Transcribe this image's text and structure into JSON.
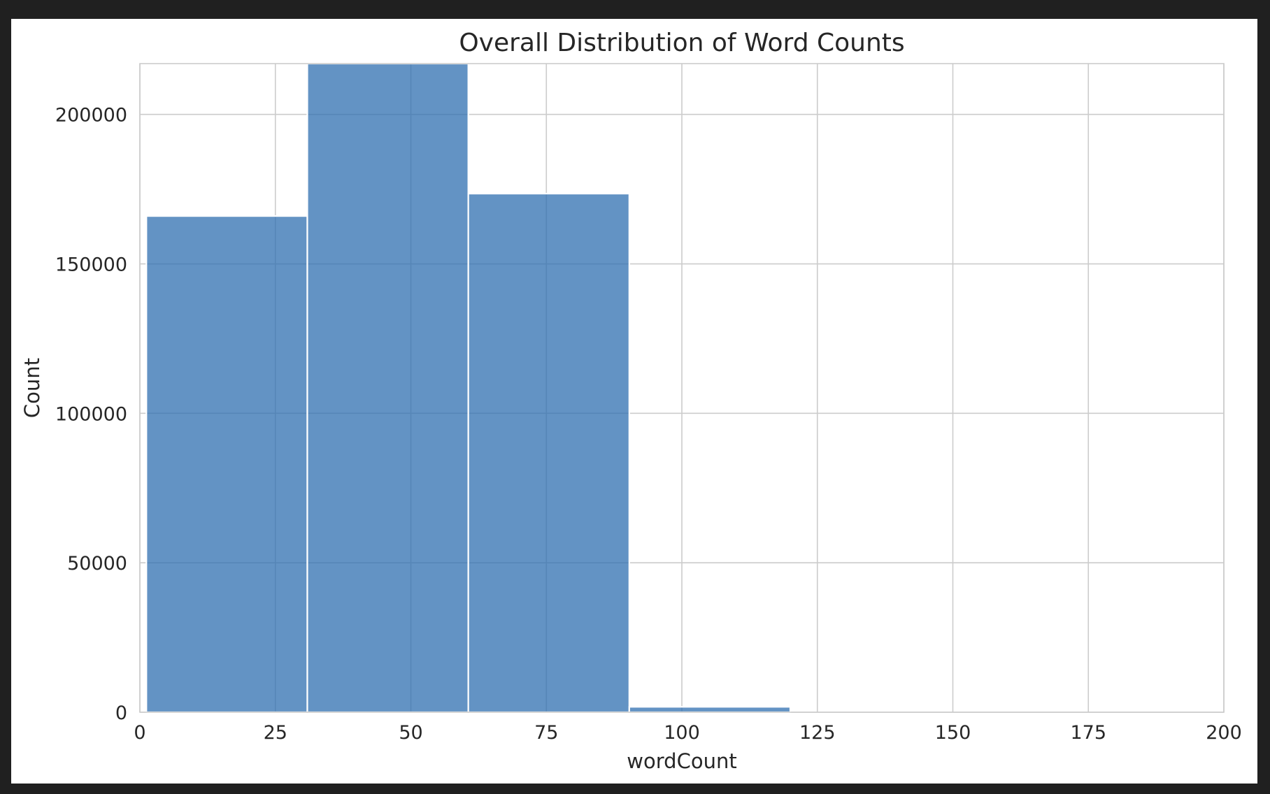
{
  "chart_data": {
    "type": "bar",
    "title": "Overall Distribution of Word Counts",
    "xlabel": "wordCount",
    "ylabel": "Count",
    "xlim": [
      0,
      200
    ],
    "ylim": [
      0,
      217000
    ],
    "x_ticks": [
      0,
      25,
      50,
      75,
      100,
      125,
      150,
      175,
      200
    ],
    "y_ticks": [
      0,
      50000,
      100000,
      150000,
      200000
    ],
    "bins": [
      {
        "start": 1.2,
        "end": 30.9,
        "count": 166000
      },
      {
        "start": 30.9,
        "end": 60.6,
        "count": 217000
      },
      {
        "start": 60.6,
        "end": 90.3,
        "count": 173500
      },
      {
        "start": 90.3,
        "end": 120.0,
        "count": 1800
      }
    ],
    "bar_color": "#2f6fb0",
    "grid": true,
    "legend": "none"
  }
}
